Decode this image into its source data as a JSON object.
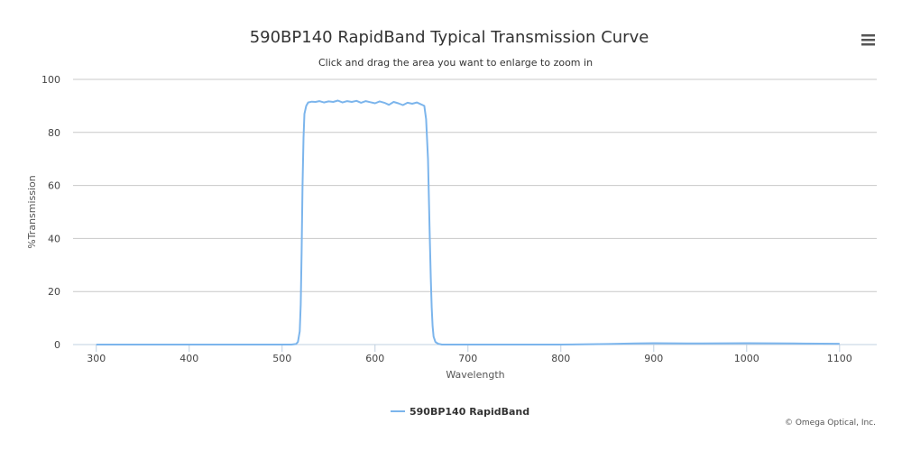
{
  "chart_data": {
    "type": "line",
    "title": "590BP140 RapidBand Typical Transmission Curve",
    "subtitle": "Click and drag the area you want to enlarge to zoom in",
    "xlabel": "Wavelength",
    "ylabel": "%Transmission",
    "xlim": [
      275,
      1140
    ],
    "ylim": [
      0,
      100
    ],
    "x_ticks": [
      300,
      400,
      500,
      600,
      700,
      800,
      900,
      1000,
      1100
    ],
    "y_ticks": [
      0,
      20,
      40,
      60,
      80,
      100
    ],
    "grid": true,
    "legend_position": "bottom-center",
    "series": [
      {
        "name": "590BP140 RapidBand",
        "color": "#7cb5ec",
        "x": [
          300,
          350,
          400,
          450,
          500,
          510,
          515,
          517,
          519,
          520,
          521,
          522,
          523,
          524,
          526,
          528,
          532,
          536,
          540,
          545,
          550,
          555,
          560,
          565,
          570,
          575,
          580,
          585,
          590,
          595,
          600,
          605,
          610,
          615,
          620,
          625,
          630,
          635,
          640,
          645,
          650,
          653,
          655,
          657,
          658,
          659,
          660,
          661,
          662,
          663,
          665,
          668,
          672,
          680,
          700,
          750,
          800,
          850,
          880,
          900,
          950,
          1000,
          1050,
          1100
        ],
        "y": [
          0,
          0,
          0,
          0,
          0,
          0,
          0.2,
          1,
          5,
          15,
          35,
          60,
          78,
          87,
          90,
          91.3,
          91.6,
          91.5,
          91.8,
          91.3,
          91.7,
          91.5,
          92,
          91.3,
          91.8,
          91.5,
          91.9,
          91.2,
          91.8,
          91.4,
          91,
          91.7,
          91.2,
          90.4,
          91.5,
          91,
          90.3,
          91.2,
          90.8,
          91.3,
          90.5,
          90,
          85,
          70,
          55,
          40,
          25,
          14,
          7,
          3,
          1,
          0.3,
          0,
          0,
          0,
          0,
          0,
          0.2,
          0.4,
          0.5,
          0.4,
          0.5,
          0.4,
          0.3
        ]
      }
    ]
  },
  "credit": "© Omega Optical, Inc.",
  "menu_icon": "hamburger-menu-icon"
}
